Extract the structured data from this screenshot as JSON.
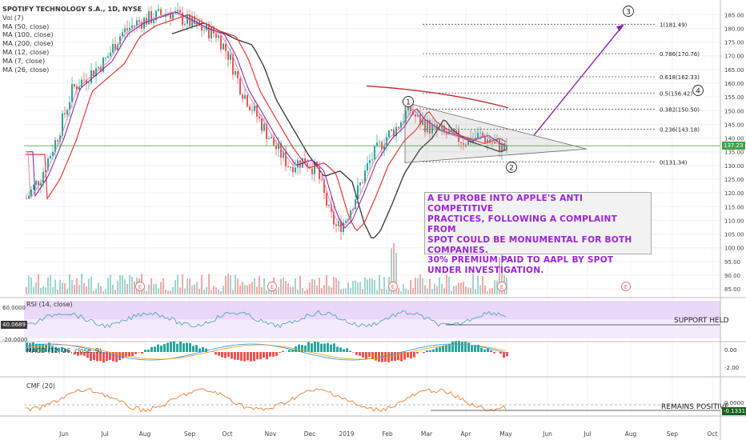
{
  "legend": {
    "title": "SPOTIFY TECHNOLOGY S.A., 1D, NYSE",
    "items": [
      "Vol (7)",
      "MA (50, close)",
      "MA (100, close)",
      "MA (200, close)",
      "MA (12, close)",
      "MA (7, close)",
      "MA (26, close)"
    ]
  },
  "note": {
    "lines": [
      "A EU PROBE INTO APPLE'S  ANTI COMPETITIVE",
      "PRACTICES, FOLLOWING A COMPLAINT FROM",
      "SPOT COULD BE MONUMENTAL FOR BOTH",
      "COMPANIES.",
      "30% PREMIUM PAID TO AAPL BY SPOT",
      "UNDER INVESTIGATION."
    ]
  },
  "panes": {
    "rsi_label": "RSI (14, close)",
    "macd_label": "MACD (12, 26, close, 9)",
    "cmf_label": "CMF (20)",
    "support_text": "SUPPORT HELD",
    "remains_text": "REMAINS POSITIVE",
    "rsi_value": "40.0689",
    "cmf_value": "-0.1331",
    "rsi_ticks": [
      "60.0000",
      "-20.0000"
    ],
    "macd_ticks": [
      "0.00",
      "-2.00"
    ],
    "cmf_ticks": [
      "0.0000"
    ],
    "price_tag": "137.23"
  },
  "chart_data": {
    "type": "line",
    "title": "SPOTIFY TECHNOLOGY S.A., 1D, NYSE",
    "y_ticks": [
      85,
      90,
      95,
      100,
      105,
      110,
      115,
      120,
      125,
      130,
      135,
      140,
      145,
      150,
      155,
      160,
      165,
      170,
      175,
      180,
      185
    ],
    "ylim": [
      83,
      188
    ],
    "x_ticks": [
      "Jun",
      "Jul",
      "Aug",
      "Sep",
      "Oct",
      "Nov",
      "Dec",
      "2019",
      "Feb",
      "Mar",
      "Apr",
      "May",
      "Jun",
      "Jul",
      "Aug",
      "Sep",
      "Oct"
    ],
    "fib_levels": [
      {
        "label": "1(181.49)",
        "value": 181.49
      },
      {
        "label": "0.786(170.76)",
        "value": 170.76
      },
      {
        "label": "0.618(162.33)",
        "value": 162.33
      },
      {
        "label": "0.5(156.42)",
        "value": 156.42
      },
      {
        "label": "0.382(150.50)",
        "value": 150.5
      },
      {
        "label": "0.236(143.18)",
        "value": 143.18
      },
      {
        "label": "0(131.34)",
        "value": 131.34
      }
    ],
    "wave_labels": [
      "1",
      "2",
      "3",
      "4"
    ],
    "earnings_markers": [
      "E",
      "E",
      "E",
      "E",
      "E"
    ],
    "horizontal_line": 137.2,
    "colors": {
      "up": "#26a69a",
      "down": "#ef5350",
      "ma200": "#333333",
      "ma50": "#e53935",
      "ma12": "#7b1fa2",
      "ma7": "#e57fa0",
      "ma26": "#c62828",
      "fib": "#555555",
      "arrow": "#8e24aa",
      "hline": "#4caf50"
    }
  }
}
